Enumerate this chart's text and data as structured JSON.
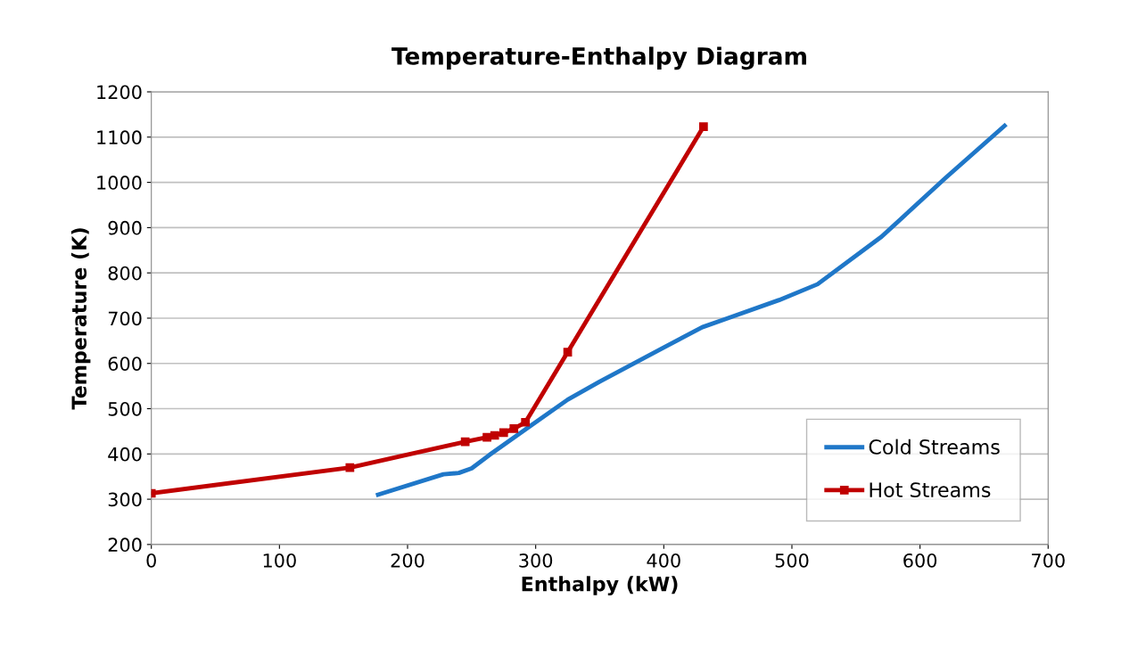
{
  "chart_data": {
    "type": "line",
    "title": "Temperature-Enthalpy Diagram",
    "xlabel": "Enthalpy (kW)",
    "ylabel": "Temperature (K)",
    "xlim": [
      0,
      700
    ],
    "xticks": [
      0,
      100,
      200,
      300,
      400,
      500,
      600,
      700
    ],
    "ylim": [
      200,
      1200
    ],
    "yticks": [
      200,
      300,
      400,
      500,
      600,
      700,
      800,
      900,
      1000,
      1100,
      1200
    ],
    "grid": "y",
    "legend": "bottom right",
    "series": [
      {
        "name": "Cold Streams",
        "color": "#1f77c8",
        "marker": "none",
        "x": [
          177,
          228,
          240,
          250,
          265,
          295,
          325,
          350,
          400,
          430,
          450,
          490,
          520,
          570,
          620,
          666
        ],
        "values": [
          310,
          355,
          358,
          368,
          400,
          460,
          520,
          560,
          635,
          680,
          700,
          740,
          775,
          880,
          1010,
          1125
        ]
      },
      {
        "name": "Hot Streams",
        "color": "#c00000",
        "marker": "square",
        "x": [
          0,
          155,
          245,
          262,
          268,
          275,
          283,
          292,
          325,
          431
        ],
        "values": [
          313,
          370,
          427,
          437,
          441,
          447,
          456,
          470,
          625,
          1123
        ]
      }
    ]
  }
}
